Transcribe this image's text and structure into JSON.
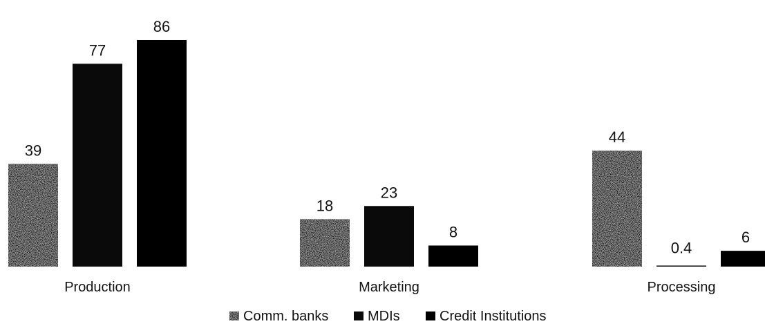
{
  "chart_data": {
    "type": "bar",
    "categories": [
      "Production",
      "Marketing",
      "Processing"
    ],
    "series": [
      {
        "name": "Comm. banks",
        "values": [
          39,
          18,
          44
        ],
        "color": "#1a1a1a"
      },
      {
        "name": "MDIs",
        "values": [
          77,
          23,
          0.4
        ],
        "color": "#0a0a0a"
      },
      {
        "name": "Credit Institutions",
        "values": [
          86,
          8,
          6
        ],
        "color": "#000000"
      }
    ],
    "data_labels": [
      [
        "39",
        "77",
        "86"
      ],
      [
        "18",
        "23",
        "8"
      ],
      [
        "44",
        "0.4",
        "6"
      ]
    ],
    "ylim": [
      0,
      86
    ],
    "grid": false,
    "legend_position": "bottom-center"
  }
}
